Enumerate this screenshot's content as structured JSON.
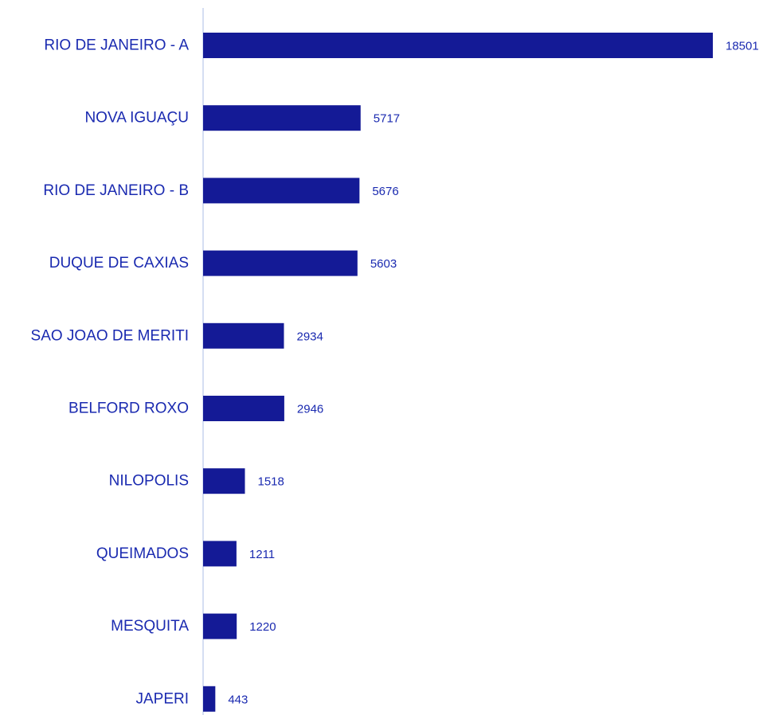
{
  "colors": {
    "bar": "#141a96",
    "label": "#1a2ab0",
    "value_label": "#1a2ab0",
    "axis_line": "#c7d3ee"
  },
  "chart_data": {
    "type": "bar",
    "orientation": "horizontal",
    "title": "",
    "xlabel": "",
    "ylabel": "",
    "categories": [
      "RIO DE JANEIRO - A",
      "NOVA IGUAÇU",
      "RIO DE JANEIRO - B",
      "DUQUE DE CAXIAS",
      "SAO JOAO DE MERITI",
      "BELFORD ROXO",
      "NILOPOLIS",
      "QUEIMADOS",
      "MESQUITA",
      "JAPERI"
    ],
    "values": [
      18501,
      5717,
      5676,
      5603,
      2934,
      2946,
      1518,
      1211,
      1220,
      443
    ],
    "value_labels": [
      "18501",
      "5717",
      "5676",
      "5603",
      "2934",
      "2946",
      "1518",
      "1211",
      "1220",
      "443"
    ],
    "xlim": [
      0,
      18501
    ],
    "grid": false,
    "legend": "none"
  }
}
